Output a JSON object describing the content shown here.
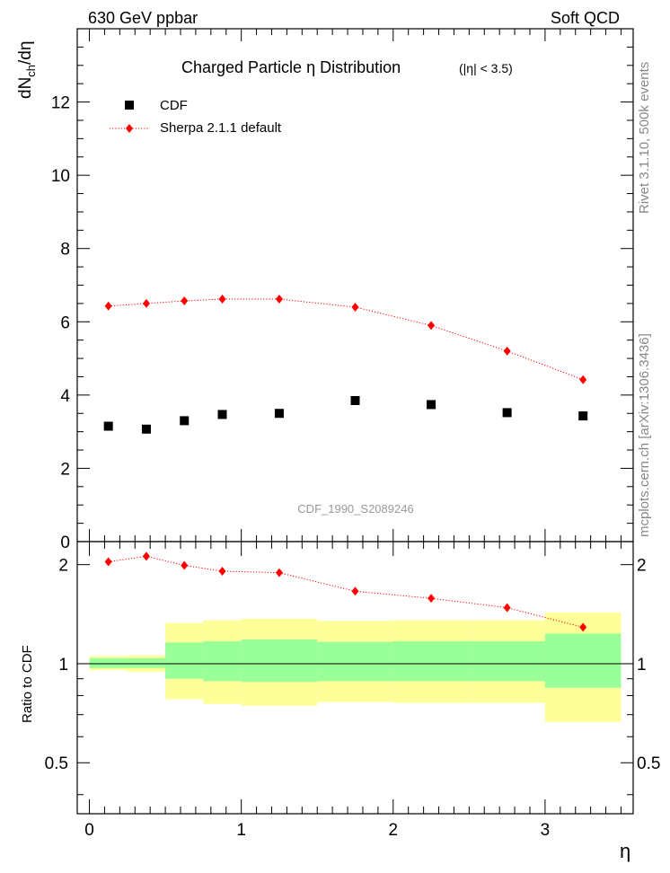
{
  "header": {
    "left_title": "630 GeV ppbar",
    "right_title": "Soft QCD"
  },
  "side_text": {
    "rivet": "Rivet 3.1.10,  500k events",
    "mcplots": "mcplots.cern.ch [arXiv:1306.3436]"
  },
  "chart_data": [
    {
      "type": "scatter",
      "title": "Charged Particle  η Distribution",
      "subtitle": "(|η| < 3.5)",
      "ylabel": "dNch/dη",
      "ylabel_parts": {
        "main": "dN",
        "sub": "ch",
        "rest": "/dη"
      },
      "watermark": "CDF_1990_S2089246",
      "xlim": [
        -0.08,
        3.58
      ],
      "ylim": [
        0,
        14
      ],
      "yticks": [
        0,
        2,
        4,
        6,
        8,
        10,
        12
      ],
      "yticklabels": [
        "0",
        "2",
        "4",
        "6",
        "8",
        "10",
        "12"
      ],
      "legend": {
        "position": "top-left",
        "entries": [
          "CDF",
          "Sherpa 2.1.1 default"
        ]
      },
      "series": [
        {
          "name": "CDF",
          "color": "#000000",
          "marker": "square",
          "x": [
            0.125,
            0.375,
            0.625,
            0.875,
            1.25,
            1.75,
            2.25,
            2.75,
            3.25
          ],
          "values": [
            3.15,
            3.07,
            3.3,
            3.47,
            3.5,
            3.85,
            3.74,
            3.52,
            3.43
          ]
        },
        {
          "name": "Sherpa 2.1.1 default",
          "color": "#ff0000",
          "marker": "diamond",
          "line": "dotted",
          "x": [
            0.125,
            0.375,
            0.625,
            0.875,
            1.25,
            1.75,
            2.25,
            2.75,
            3.25
          ],
          "values": [
            6.43,
            6.5,
            6.57,
            6.62,
            6.62,
            6.4,
            5.9,
            5.2,
            4.42
          ]
        }
      ]
    },
    {
      "type": "line",
      "ylabel": "Ratio to CDF",
      "xlabel": "η",
      "yscale": "log",
      "xlim": [
        -0.08,
        3.58
      ],
      "ylim": [
        0.35,
        2.35
      ],
      "xticks": [
        0,
        1,
        2,
        3
      ],
      "xticklabels": [
        "0",
        "1",
        "2",
        "3"
      ],
      "yticks": [
        0.5,
        1,
        2
      ],
      "yticklabels": [
        "0.5",
        "1",
        "2"
      ],
      "reference_line": 1,
      "bands": {
        "x_edges": [
          0,
          0.25,
          0.5,
          0.75,
          1.0,
          1.5,
          2.0,
          2.5,
          3.0,
          3.5
        ],
        "yellow_color": "#ffff99",
        "green_color": "#99ff99",
        "yellow_low": [
          0.955,
          0.945,
          0.78,
          0.755,
          0.745,
          0.765,
          0.76,
          0.76,
          0.665
        ],
        "yellow_high": [
          1.055,
          1.06,
          1.33,
          1.355,
          1.37,
          1.35,
          1.355,
          1.355,
          1.43
        ],
        "green_low": [
          0.97,
          0.97,
          0.9,
          0.885,
          0.88,
          0.885,
          0.885,
          0.885,
          0.845
        ],
        "green_high": [
          1.04,
          1.04,
          1.16,
          1.17,
          1.185,
          1.165,
          1.17,
          1.17,
          1.235
        ]
      },
      "series": [
        {
          "name": "Sherpa 2.1.1 default / CDF",
          "color": "#ff0000",
          "x": [
            0.125,
            0.375,
            0.625,
            0.875,
            1.25,
            1.75,
            2.25,
            2.75,
            3.25
          ],
          "values": [
            2.04,
            2.12,
            1.99,
            1.91,
            1.89,
            1.66,
            1.58,
            1.48,
            1.29
          ]
        }
      ]
    }
  ]
}
